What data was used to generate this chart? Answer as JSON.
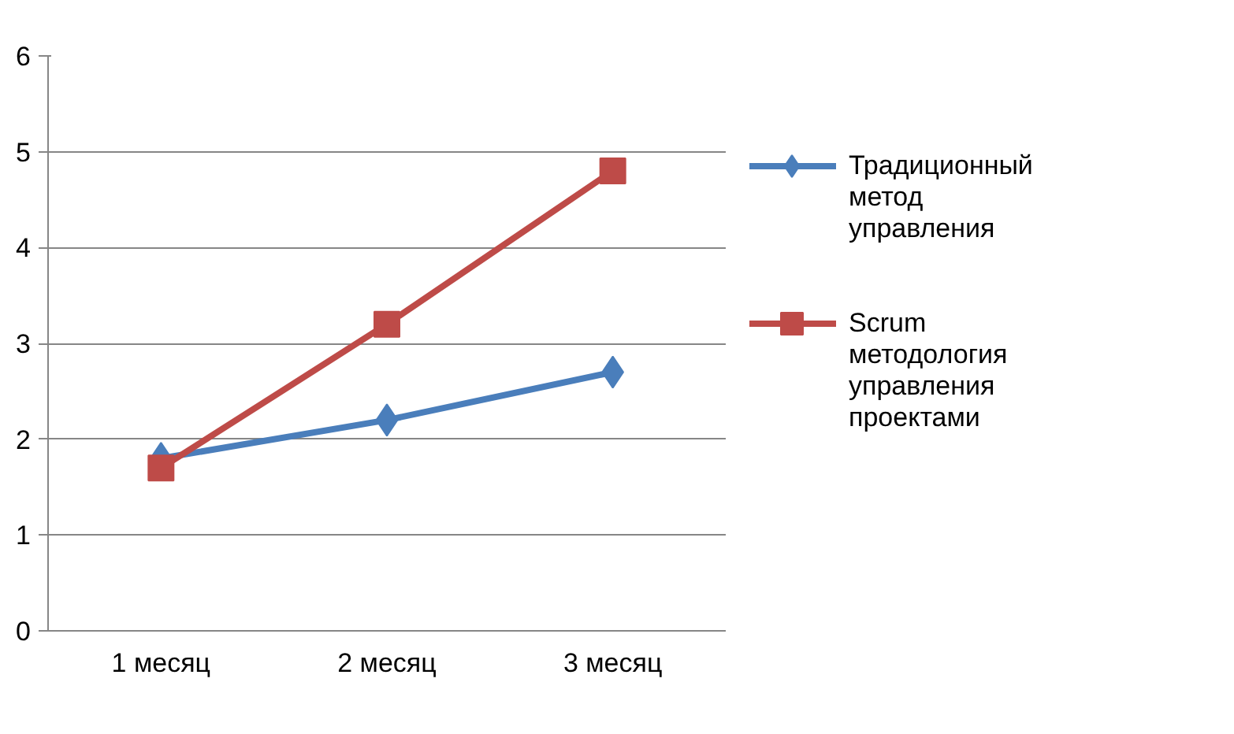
{
  "chart_data": {
    "type": "line",
    "categories": [
      "1 месяц",
      "2 месяц",
      "3 месяц"
    ],
    "series": [
      {
        "name": "Традиционный метод управления",
        "color": "#4a7ebb",
        "values": [
          1.8,
          2.2,
          2.7
        ],
        "marker": "diamond"
      },
      {
        "name": "Scrum методология управления проектами",
        "color": "#be4b48",
        "values": [
          1.7,
          3.2,
          4.8
        ],
        "marker": "square"
      }
    ],
    "ylim": [
      0,
      6
    ],
    "yticks": [
      0,
      1,
      2,
      3,
      4,
      5,
      6
    ],
    "grid": "y",
    "legend": "right"
  }
}
